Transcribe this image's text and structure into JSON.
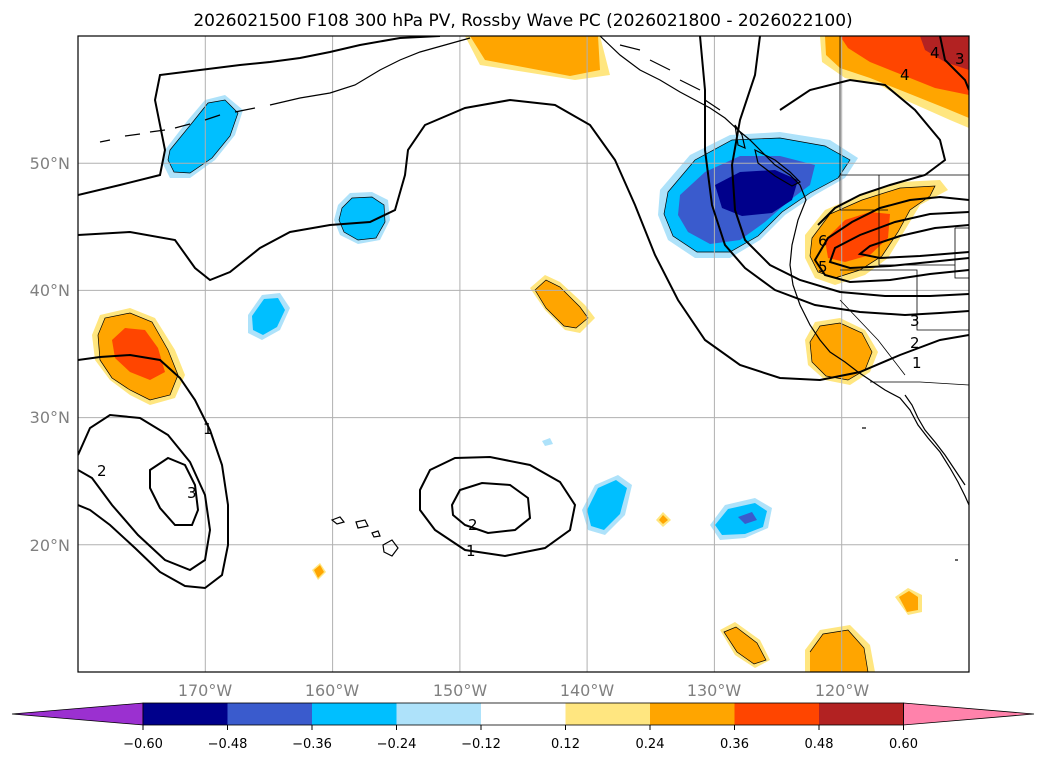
{
  "title": "2026021500 F108 300 hPa PV, Rossby Wave PC (2026021800 - 2026022100)",
  "lat_labels": [
    "50°N",
    "40°N",
    "30°N",
    "20°N"
  ],
  "lon_labels": [
    "170°W",
    "160°W",
    "150°W",
    "140°W",
    "130°W",
    "120°W"
  ],
  "colorbar": {
    "ticks": [
      "−0.60",
      "−0.48",
      "−0.36",
      "−0.24",
      "−0.12",
      "0.12",
      "0.24",
      "0.36",
      "0.48",
      "0.60"
    ],
    "colors": [
      "#9b30d0",
      "#00008b",
      "#3a5bcd",
      "#00bfff",
      "#aee2fa",
      "#ffffff",
      "#ffe680",
      "#ffa500",
      "#ff4500",
      "#b22222",
      "#ff82ab"
    ]
  },
  "contour_labels": [
    "1",
    "2",
    "3",
    "1",
    "2",
    "1",
    "2",
    "3",
    "4",
    "5",
    "6",
    "3",
    "4"
  ],
  "map_data": {
    "projection": "plate carree",
    "extent": {
      "lon": [
        -180,
        -110
      ],
      "lat": [
        10,
        60
      ]
    },
    "field": "300 hPa PV anomaly (shaded) and Rossby wave PC (contours)"
  }
}
